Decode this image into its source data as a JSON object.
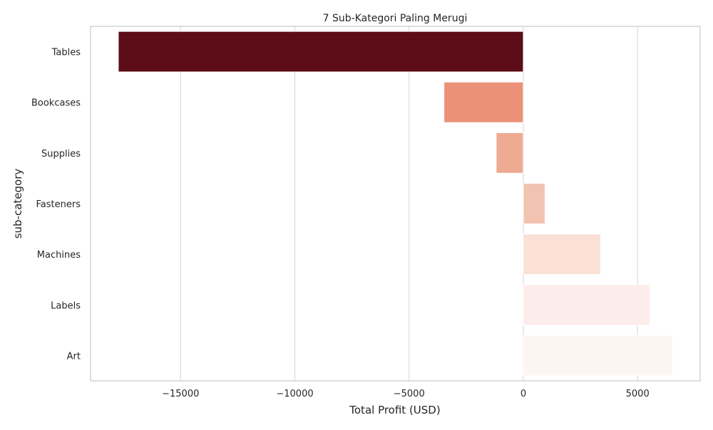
{
  "chart_data": {
    "type": "bar",
    "orientation": "horizontal",
    "title": "7 Sub-Kategori Paling Merugi",
    "xlabel": "Total Profit (USD)",
    "ylabel": "sub-category",
    "categories": [
      "Tables",
      "Bookcases",
      "Supplies",
      "Fasteners",
      "Machines",
      "Labels",
      "Art"
    ],
    "values": [
      -17725,
      -3473,
      -1189,
      950,
      3385,
      5546,
      6528
    ],
    "xlim": [
      -18940,
      7740
    ],
    "xticks": [
      -15000,
      -10000,
      -5000,
      0,
      5000
    ],
    "xtick_labels": [
      "−15000",
      "−10000",
      "−5000",
      "0",
      "5000"
    ],
    "grid": "x",
    "bar_colors": [
      "#5c0d17",
      "#eb9177",
      "#eeab92",
      "#f2c3b1",
      "#fae0d5",
      "#fcecea",
      "#fdf5f1"
    ]
  }
}
